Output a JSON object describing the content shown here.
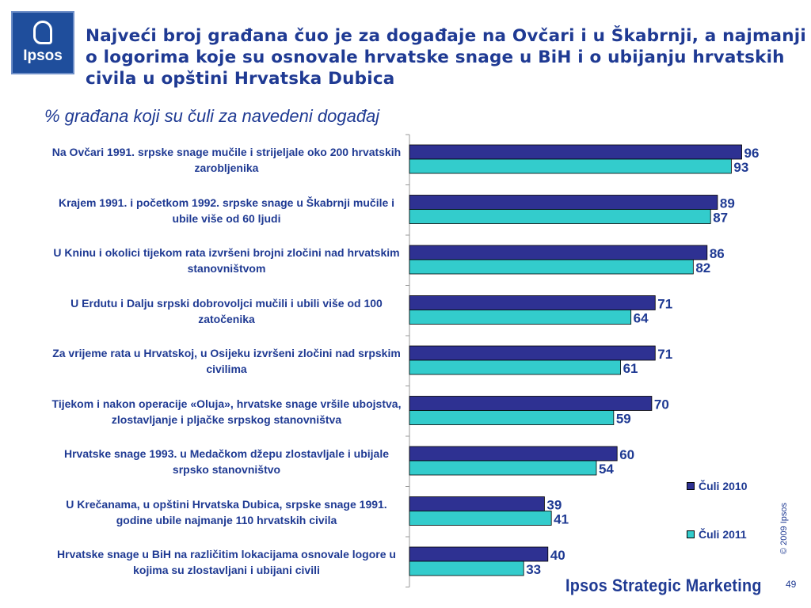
{
  "logo": {
    "text": "Ipsos"
  },
  "title": "Najveći broj građana čuo je za događaje na Ovčari i u Škabrnji, a najmanji o logorima koje su osnovale hrvatske snage u BiH i o ubijanju hrvatskih civila u opštini Hrvatska Dubica",
  "subtitle": "% građana koji su čuli za navedeni događaj",
  "chart_data": {
    "type": "bar",
    "orientation": "horizontal",
    "categories": [
      "Na Ovčari 1991. srpske snage mučile i strijeljale oko 200 hrvatskih zarobljenika",
      "Krajem 1991. i početkom 1992. srpske snage u Škabrnji mučile i ubile više od 60 ljudi",
      "U Kninu i okolici tijekom rata izvršeni brojni zločini nad hrvatskim stanovništvom",
      "U Erdutu i Dalju srpski dobrovoljci mučili i ubili više od 100 zatočenika",
      "Za vrijeme rata u Hrvatskoj, u Osijeku izvršeni zločini nad srpskim civilima",
      "Tijekom i nakon operacije «Oluja», hrvatske snage vršile ubojstva, zlostavljanje i pljačke srpskog stanovništva",
      "Hrvatske snage 1993. u Medačkom džepu zlostavljale i ubijale srpsko stanovništvo",
      "U Krečanama, u opštini Hrvatska Dubica, srpske snage 1991. godine ubile najmanje 110 hrvatskih civila",
      "Hrvatske snage u BiH na različitim lokacijama osnovale logore u kojima su zlostavljani i ubijani civili"
    ],
    "series": [
      {
        "name": "Čuli 2010",
        "color": "#2e3192",
        "values": [
          96,
          89,
          86,
          71,
          71,
          70,
          60,
          39,
          40
        ]
      },
      {
        "name": "Čuli 2011",
        "color": "#33cccc",
        "values": [
          93,
          87,
          82,
          64,
          61,
          59,
          54,
          41,
          33
        ]
      }
    ],
    "xlim": [
      0,
      100
    ],
    "grid": false,
    "data_labels": true,
    "legend_position": "right"
  },
  "copyright": "© 2009 Ipsos",
  "footer": {
    "brand": "Ipsos Strategic Marketing",
    "page": "49"
  }
}
